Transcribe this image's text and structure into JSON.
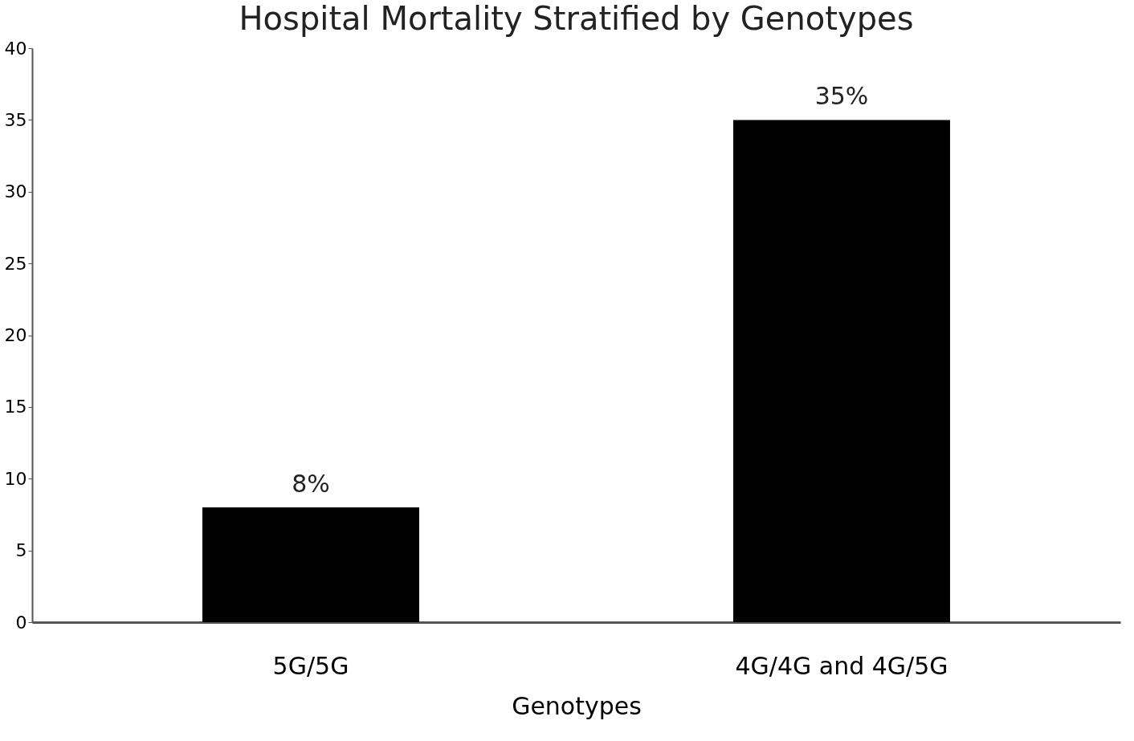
{
  "chart_data": {
    "type": "bar",
    "title": "Hospital Mortality Stratified by Genotypes",
    "xlabel": "Genotypes",
    "categories": [
      "5G/5G",
      "4G/4G and 4G/5G"
    ],
    "values": [
      8,
      35
    ],
    "color": "#000000",
    "value_labels": [
      "8%",
      "35%"
    ],
    "ylim": [
      0,
      40
    ],
    "yticks": [
      0,
      5,
      10,
      15,
      20,
      25,
      30,
      35,
      40
    ],
    "grid": false
  }
}
